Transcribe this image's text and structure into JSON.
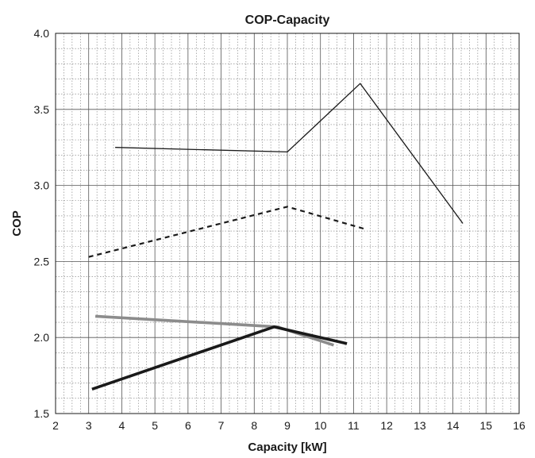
{
  "chart_data": {
    "type": "line",
    "title": "COP-Capacity",
    "xlabel": "Capacity [kW]",
    "ylabel": "COP",
    "xlim": [
      2,
      16
    ],
    "ylim": [
      1.5,
      4.0
    ],
    "x_ticks": [
      "2",
      "3",
      "4",
      "5",
      "6",
      "7",
      "8",
      "9",
      "10",
      "11",
      "12",
      "13",
      "14",
      "15",
      "16"
    ],
    "y_ticks": [
      "1.5",
      "2.0",
      "2.5",
      "3.0",
      "3.5",
      "4.0"
    ],
    "grid": true,
    "series": [
      {
        "color": "#1a1a1a",
        "style": "thin-solid",
        "x": [
          3.8,
          9.0,
          11.2,
          14.3
        ],
        "y": [
          3.25,
          3.22,
          3.67,
          2.75
        ]
      },
      {
        "color": "#1a1a1a",
        "style": "dashed",
        "x": [
          3.0,
          9.0,
          11.4
        ],
        "y": [
          2.53,
          2.86,
          2.71
        ]
      },
      {
        "color": "#8c8c8c",
        "style": "thick-solid",
        "x": [
          3.2,
          8.7,
          10.4
        ],
        "y": [
          2.14,
          2.07,
          1.95
        ]
      },
      {
        "color": "#1a1a1a",
        "style": "thick-solid",
        "x": [
          3.1,
          8.6,
          10.8
        ],
        "y": [
          1.66,
          2.07,
          1.96
        ]
      }
    ]
  }
}
